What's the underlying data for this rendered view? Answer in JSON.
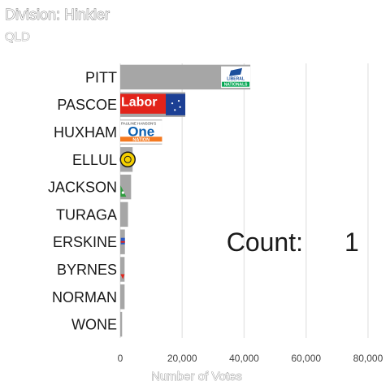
{
  "chart_data": {
    "type": "bar",
    "orientation": "horizontal",
    "title": "Division: Hinkler",
    "subtitle": "QLD",
    "xlabel": "Number of Votes",
    "ylabel": "",
    "xlim": [
      0,
      85000
    ],
    "xticks": [
      0,
      20000,
      40000,
      60000,
      80000
    ],
    "xtick_labels": [
      "0",
      "20,000",
      "40,000",
      "60,000",
      "80,000"
    ],
    "grid": true,
    "bar_color": "#a6a6a6",
    "categories": [
      "PITT",
      "PASCOE",
      "HUXHAM",
      "ELLUL",
      "JACKSON",
      "TURAGA",
      "ERSKINE",
      "BYRNES",
      "NORMAN",
      "WONE"
    ],
    "values": [
      42000,
      21000,
      13500,
      4000,
      3500,
      2500,
      1500,
      1400,
      1400,
      600
    ],
    "annotation_label": "Count:",
    "annotation_value": "1",
    "party_logos": [
      {
        "candidate": "PITT",
        "text1": "LIBERAL",
        "text2": "NATIONALS",
        "color": "#1c4f9c",
        "accent": "#00a651"
      },
      {
        "candidate": "PASCOE",
        "text1": "Labor",
        "color": "#e2231a",
        "accent": "#ffffff"
      },
      {
        "candidate": "HUXHAM",
        "text1": "PAULINE HANSON'S",
        "text2": "One",
        "text3": "NATION",
        "color": "#0b5fb0",
        "accent": "#f47920"
      },
      {
        "candidate": "ELLUL",
        "color": "#f5d000",
        "accent": "#1a1a1a"
      },
      {
        "candidate": "JACKSON",
        "color": "#2e9d3e",
        "accent": "#ffffff"
      },
      {
        "candidate": "ERSKINE",
        "color": "#2b59c3",
        "accent": "#e2231a"
      },
      {
        "candidate": "BYRNES",
        "color": "#e2231a",
        "accent": "#ffffff"
      }
    ]
  }
}
